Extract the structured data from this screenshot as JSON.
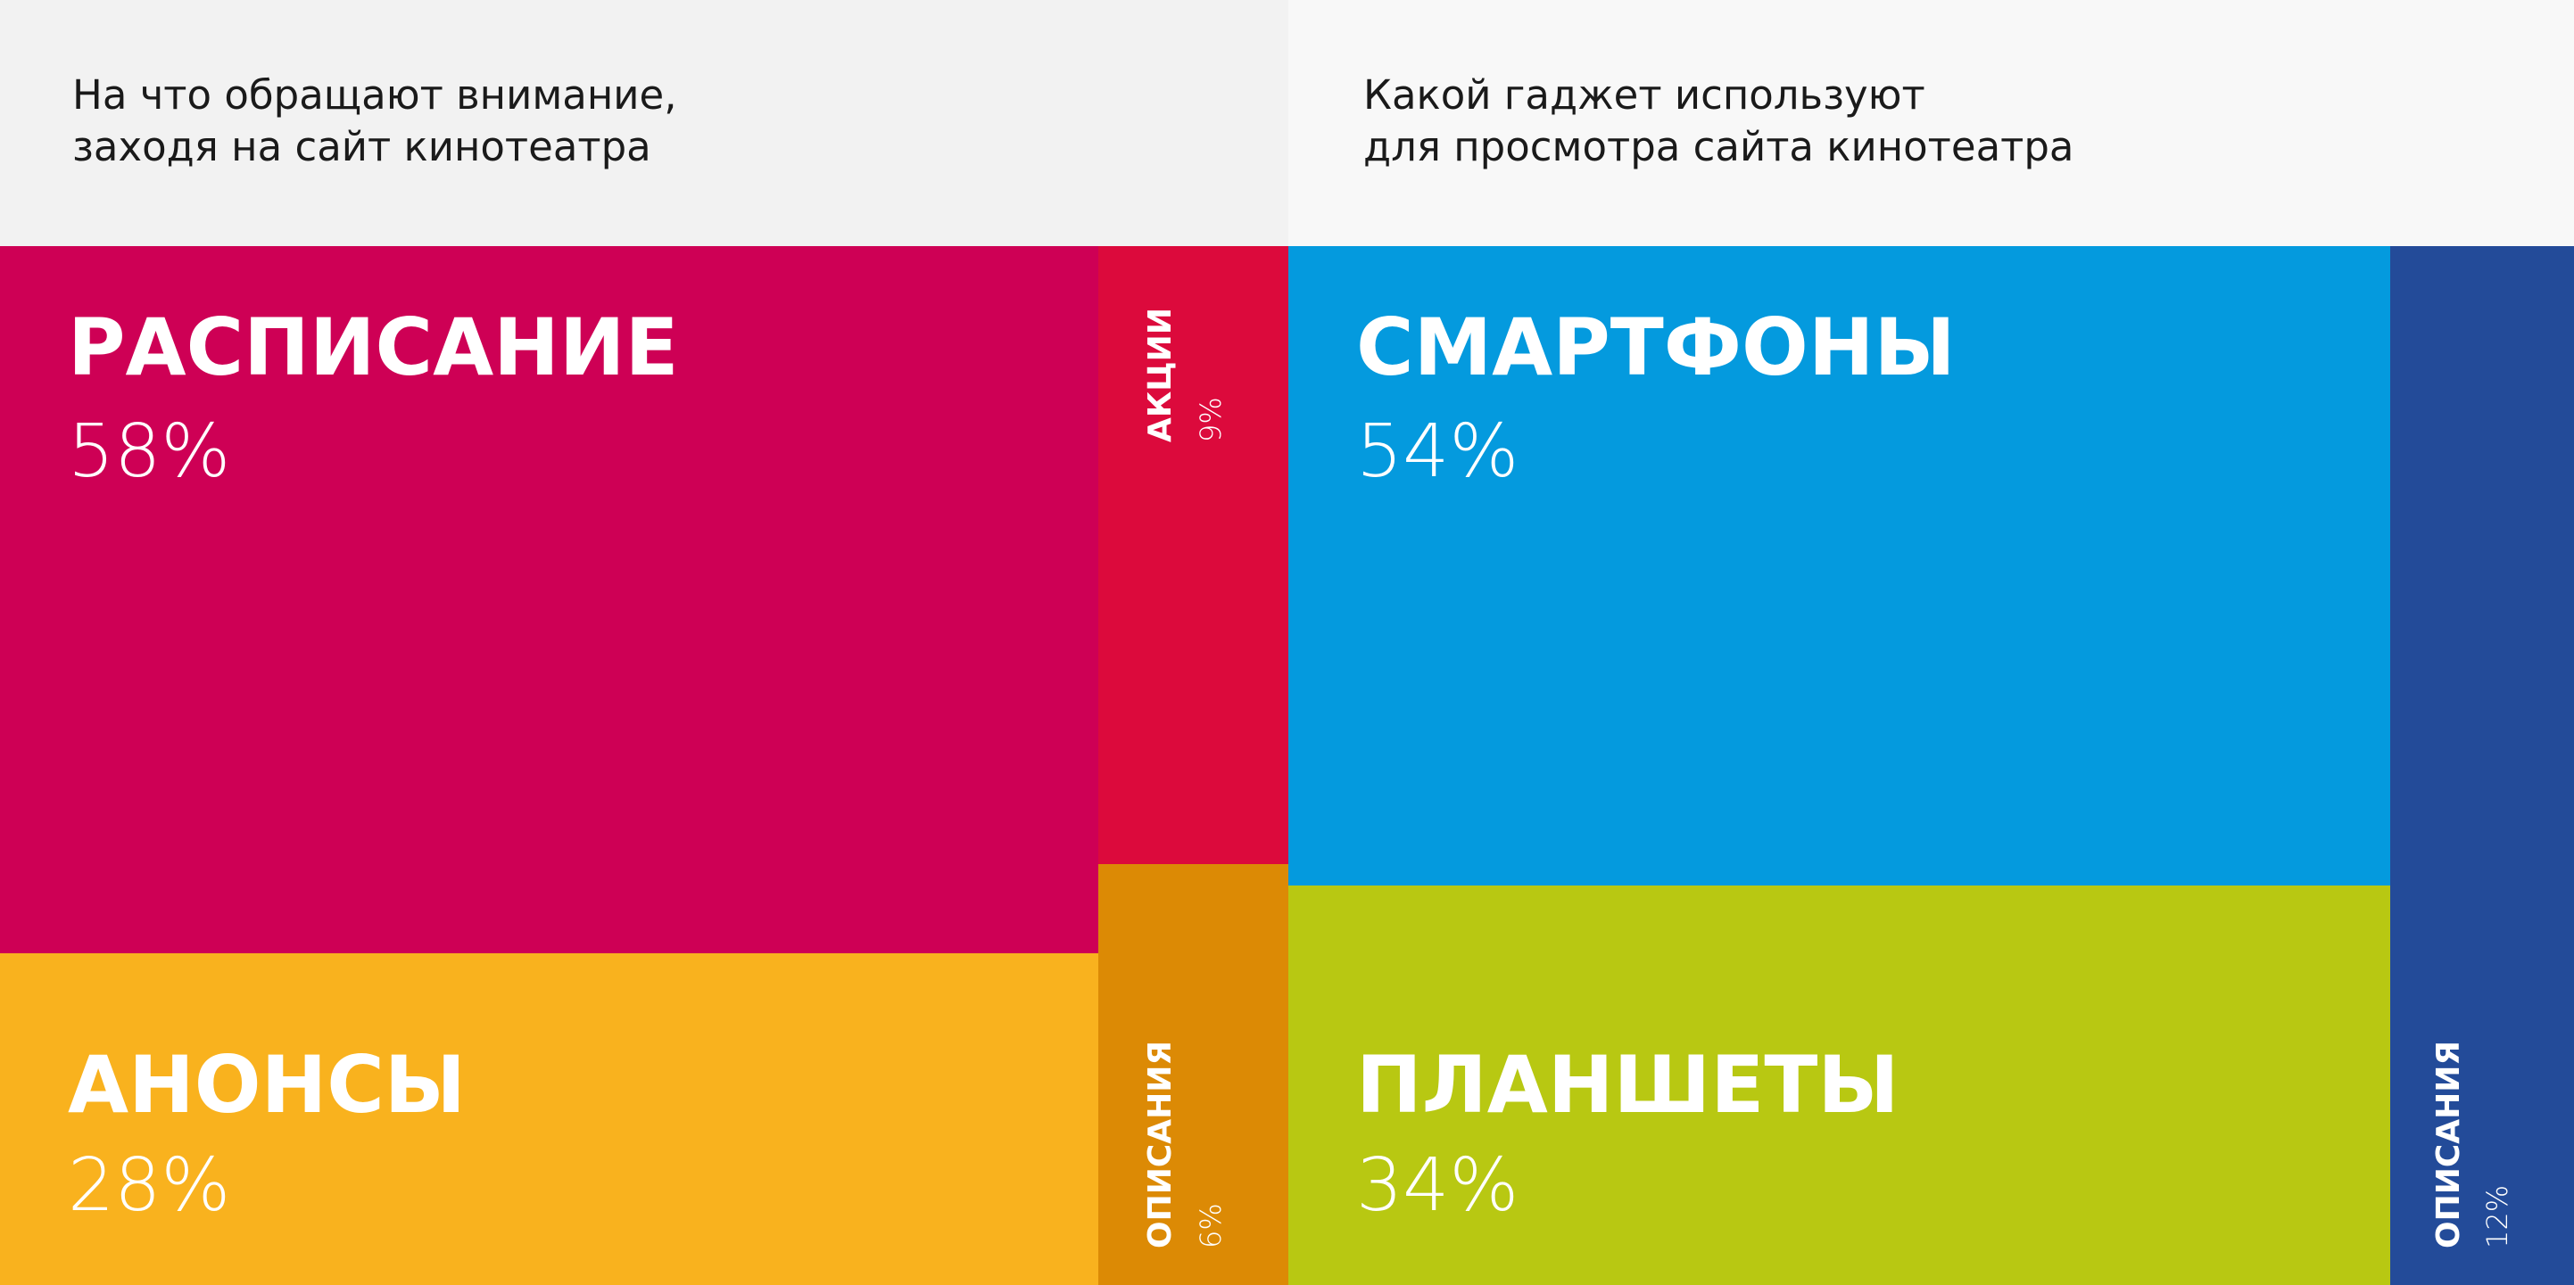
{
  "chart_data": [
    {
      "type": "treemap",
      "title": "На что обращают внимание,\nзаходя на сайт  кинотеатра",
      "items": [
        {
          "name": "РАСПИСАНИЕ",
          "value": 58,
          "value_label": "58%",
          "color": "#CE0055"
        },
        {
          "name": "АНОНСЫ",
          "value": 28,
          "value_label": "28%",
          "color": "#F9B21E"
        },
        {
          "name": "АКЦИИ",
          "value": 9,
          "value_label": "9%",
          "color": "#DC0A3C"
        },
        {
          "name": "ОПИСАНИЯ",
          "value": 6,
          "value_label": "6%",
          "color": "#DC8A05"
        }
      ]
    },
    {
      "type": "treemap",
      "title": "Какой гаджет используют\nдля просмотра  сайта кинотеатра",
      "items": [
        {
          "name": "СМАРТФОНЫ",
          "value": 54,
          "value_label": "54%",
          "color": "#049ADE"
        },
        {
          "name": "ПЛАНШЕТЫ",
          "value": 34,
          "value_label": "34%",
          "color": "#B8C812"
        },
        {
          "name": "ОПИСАНИЯ",
          "value": 12,
          "value_label": "12%",
          "color": "#234B99"
        }
      ]
    }
  ]
}
